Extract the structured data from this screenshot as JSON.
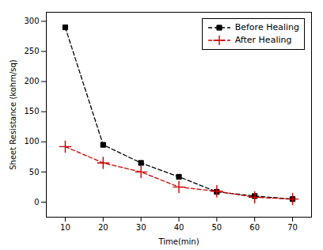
{
  "chart_data": {
    "type": "line",
    "xlabel": "Time(min)",
    "ylabel": "Sheet Resistance (kohm/sq)",
    "x": [
      10,
      20,
      30,
      40,
      50,
      60,
      70
    ],
    "series": [
      {
        "name": "Before Healing",
        "color": "#000000",
        "values": [
          290,
          95,
          65,
          42,
          17,
          10,
          5
        ],
        "marker": "square",
        "line_style": "dashed"
      },
      {
        "name": "After Healing",
        "color": "#cc0000",
        "values": [
          92,
          65,
          50,
          25,
          18,
          8,
          5
        ],
        "marker": "plus",
        "line_style": "dashed"
      }
    ],
    "xlim": [
      5,
      75
    ],
    "ylim": [
      -25,
      315
    ],
    "xticks": [
      10,
      20,
      30,
      40,
      50,
      60,
      70
    ],
    "yticks": [
      0,
      50,
      100,
      150,
      200,
      250,
      300
    ],
    "legend": "upper right"
  }
}
